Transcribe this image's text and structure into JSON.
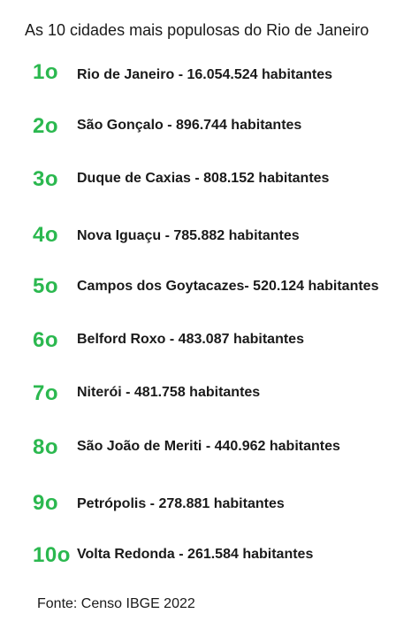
{
  "title": "As 10 cidades mais populosas do Rio de Janeiro",
  "accent_color": "#2bb84f",
  "items": [
    {
      "rank": "1o",
      "text": "Rio de Janeiro - 16.054.524 habitantes"
    },
    {
      "rank": "2o",
      "text": "São Gonçalo - 896.744 habitantes"
    },
    {
      "rank": "3o",
      "text": "Duque de Caxias - 808.152 habitantes"
    },
    {
      "rank": "4o",
      "text": "Nova Iguaçu - 785.882 habitantes"
    },
    {
      "rank": "5o",
      "text": "Campos dos Goytacazes- 520.124 habitantes"
    },
    {
      "rank": "6o",
      "text": "Belford Roxo - 483.087 habitantes"
    },
    {
      "rank": "7o",
      "text": "Niterói - 481.758 habitantes"
    },
    {
      "rank": "8o",
      "text": "São João de Meriti - 440.962 habitantes"
    },
    {
      "rank": "9o",
      "text": "Petrópolis - 278.881 habitantes"
    },
    {
      "rank": "10o",
      "text": "Volta Redonda - 261.584 habitantes"
    }
  ],
  "source": "Fonte: Censo IBGE 2022"
}
